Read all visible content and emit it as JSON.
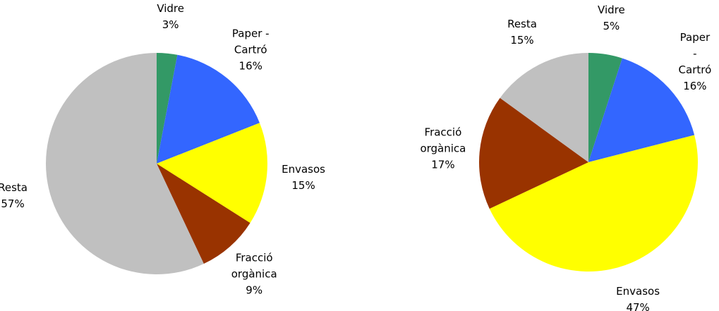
{
  "chart_data": [
    {
      "type": "pie",
      "categories": [
        "Vidre",
        "Paper - Cartró",
        "Envasos",
        "Fracció orgànica",
        "Resta"
      ],
      "values": [
        3,
        16,
        15,
        9,
        57
      ],
      "value_labels": [
        "3%",
        "16%",
        "15%",
        "9%",
        "57%"
      ],
      "colors": [
        "#339966",
        "#3366ff",
        "#ffff00",
        "#993300",
        "#c0c0c0"
      ]
    },
    {
      "type": "pie",
      "categories": [
        "Vidre",
        "Paper - Cartró",
        "Envasos",
        "Fracció orgànica",
        "Resta"
      ],
      "values": [
        5,
        16,
        47,
        17,
        15
      ],
      "value_labels": [
        "5%",
        "16%",
        "47%",
        "17%",
        "15%"
      ],
      "colors": [
        "#339966",
        "#3366ff",
        "#ffff00",
        "#993300",
        "#c0c0c0"
      ]
    }
  ]
}
